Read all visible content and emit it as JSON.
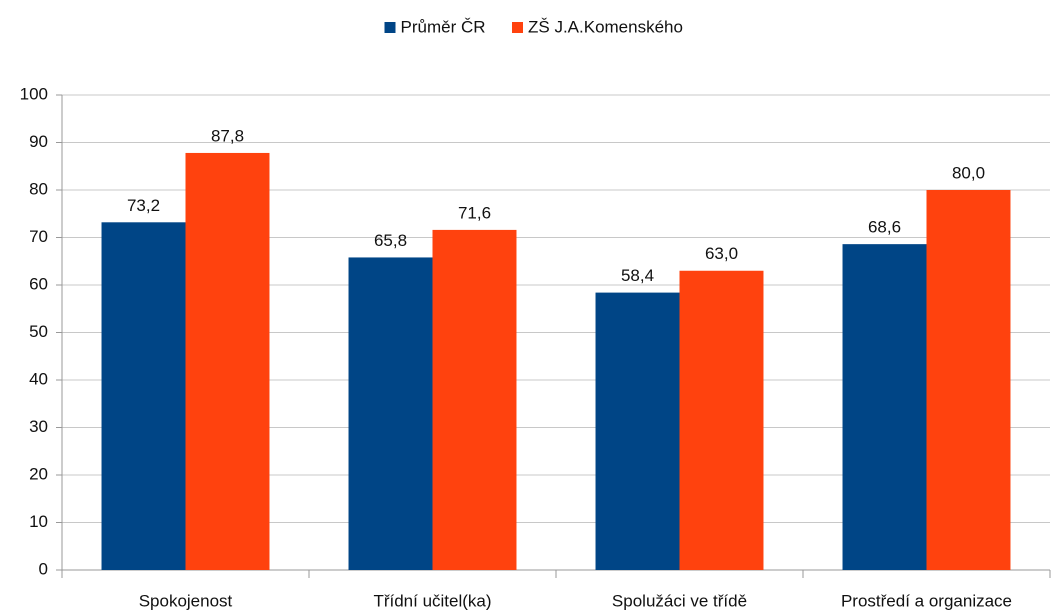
{
  "chart_data": {
    "type": "bar",
    "categories": [
      "Spokojenost",
      "Třídní učitel(ka)",
      "Spolužáci ve třídě",
      "Prostředí a organizace"
    ],
    "series": [
      {
        "name": "Průměr ČR",
        "color": "#004586",
        "values": [
          73.2,
          65.8,
          58.4,
          68.6
        ],
        "value_labels": [
          "73,2",
          "65,8",
          "58,4",
          "68,6"
        ]
      },
      {
        "name": "ZŠ J.A.Komenského",
        "color": "#ff420e",
        "values": [
          87.8,
          71.6,
          63.0,
          80.0
        ],
        "value_labels": [
          "87,8",
          "71,6",
          "63,0",
          "80,0"
        ]
      }
    ],
    "ylim": [
      0,
      100
    ],
    "yticks": [
      0,
      10,
      20,
      30,
      40,
      50,
      60,
      70,
      80,
      90,
      100
    ],
    "grid": true,
    "legend": "top"
  }
}
